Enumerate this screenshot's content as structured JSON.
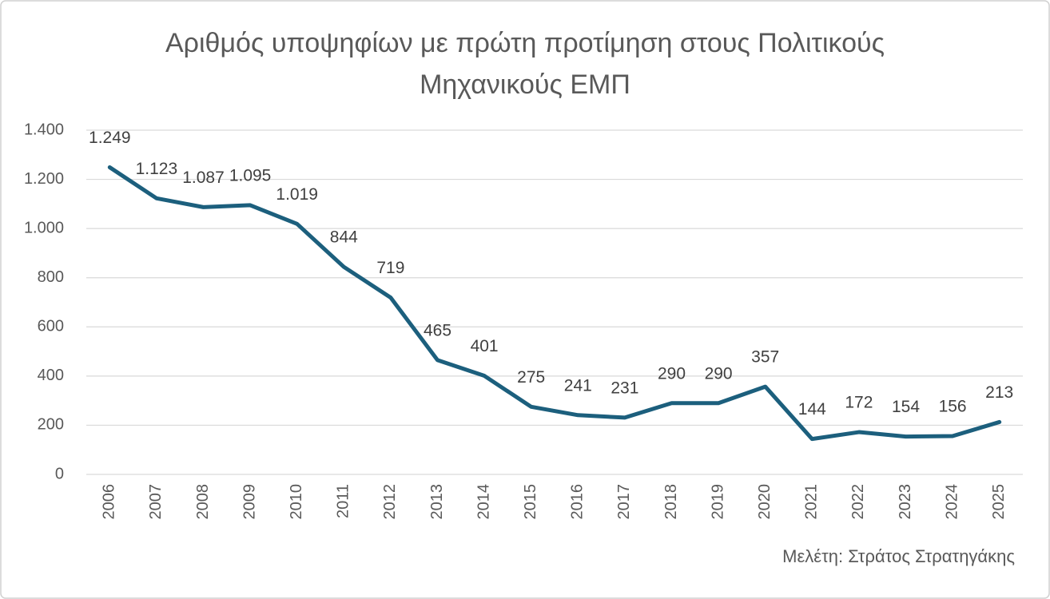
{
  "chart_data": {
    "type": "line",
    "title": "Αριθμός υποψηφίων με πρώτη προτίμηση στους Πολιτικούς Μηχανικούς ΕΜΠ",
    "annotation": "Μελέτη: Στράτος Στρατηγάκης",
    "categories": [
      "2006",
      "2007",
      "2008",
      "2009",
      "2010",
      "2011",
      "2012",
      "2013",
      "2014",
      "2015",
      "2016",
      "2017",
      "2018",
      "2019",
      "2020",
      "2021",
      "2022",
      "2023",
      "2024",
      "2025"
    ],
    "values": [
      1249,
      1123,
      1087,
      1095,
      1019,
      844,
      719,
      465,
      401,
      275,
      241,
      231,
      290,
      290,
      357,
      144,
      172,
      154,
      156,
      213
    ],
    "value_labels": [
      "1.249",
      "1.123",
      "1.087",
      "1.095",
      "1.019",
      "844",
      "719",
      "465",
      "401",
      "275",
      "241",
      "231",
      "290",
      "290",
      "357",
      "144",
      "172",
      "154",
      "156",
      "213"
    ],
    "color": "#1c5f7d",
    "ylim": [
      0,
      1400
    ],
    "yticks": [
      0,
      200,
      400,
      600,
      800,
      {
        "value": 1000,
        "label": "1.000"
      },
      {
        "value": 1200,
        "label": "1.200"
      },
      {
        "value": 1400,
        "label": "1.400"
      }
    ],
    "grid": true
  }
}
